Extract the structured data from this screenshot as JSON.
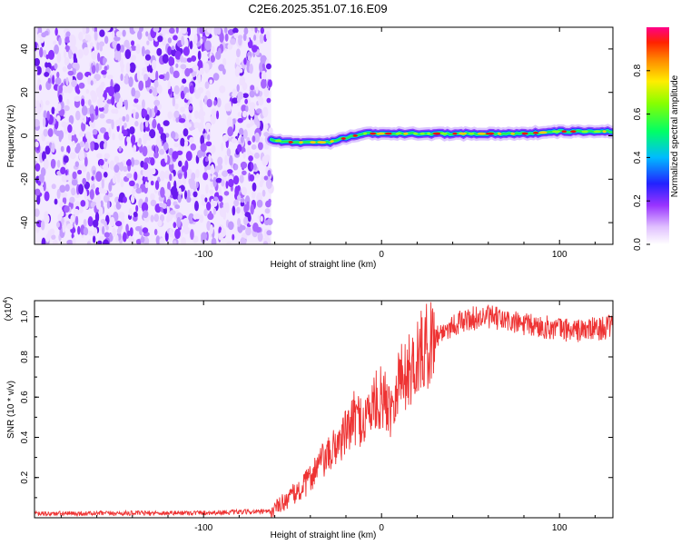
{
  "title": "C2E6.2025.351.07.16.E09",
  "chart_data": [
    {
      "type": "heatmap",
      "name": "spectrogram",
      "xlabel": "Height of straight line (km)",
      "ylabel": "Frequency (Hz)",
      "xlim": [
        -195,
        130
      ],
      "ylim": [
        -50,
        50
      ],
      "xticks": [
        -100,
        0,
        100
      ],
      "yticks": [
        -40,
        -20,
        0,
        20,
        40
      ],
      "noise_region_x": [
        -195,
        -62
      ],
      "signal_start_x": -62,
      "signal_ridge": [
        {
          "x": -62,
          "f": -2
        },
        {
          "x": -50,
          "f": -3
        },
        {
          "x": -40,
          "f": -3
        },
        {
          "x": -30,
          "f": -3
        },
        {
          "x": -20,
          "f": -1
        },
        {
          "x": -10,
          "f": 1
        },
        {
          "x": 0,
          "f": 1
        },
        {
          "x": 20,
          "f": 1
        },
        {
          "x": 40,
          "f": 1
        },
        {
          "x": 60,
          "f": 1
        },
        {
          "x": 80,
          "f": 1
        },
        {
          "x": 100,
          "f": 2
        },
        {
          "x": 130,
          "f": 2
        }
      ],
      "colorbar": {
        "label": "Normalized spectral amplitude",
        "range": [
          0,
          1
        ],
        "ticks": [
          "0.0",
          "0.2",
          "0.4",
          "0.6",
          "0.8"
        ]
      }
    },
    {
      "type": "line",
      "name": "snr",
      "xlabel": "Height of straight line (km)",
      "ylabel": "SNR (10 * v/v)",
      "scale_label": "(x10",
      "scale_exponent": "4",
      "scale_close": ")",
      "xlim": [
        -195,
        130
      ],
      "ylim": [
        0,
        1.08
      ],
      "xticks": [
        -100,
        0,
        100
      ],
      "yticks": [
        "0.2",
        "0.4",
        "0.6",
        "0.8",
        "1.0"
      ],
      "series": [
        {
          "name": "SNR",
          "color": "#ee3333",
          "x": [
            -195,
            -150,
            -100,
            -70,
            -62,
            -52,
            -45,
            -40,
            -35,
            -30,
            -25,
            -20,
            -15,
            -10,
            -5,
            0,
            5,
            10,
            15,
            20,
            25,
            30,
            35,
            40,
            50,
            60,
            70,
            80,
            90,
            100,
            110,
            120,
            130
          ],
          "values": [
            0.02,
            0.022,
            0.025,
            0.03,
            0.03,
            0.1,
            0.14,
            0.2,
            0.27,
            0.3,
            0.37,
            0.42,
            0.5,
            0.48,
            0.56,
            0.6,
            0.55,
            0.7,
            0.72,
            0.8,
            0.85,
            0.9,
            0.93,
            0.96,
            0.99,
            1.0,
            0.98,
            0.96,
            0.95,
            0.94,
            0.93,
            0.94,
            0.95
          ]
        }
      ]
    }
  ]
}
